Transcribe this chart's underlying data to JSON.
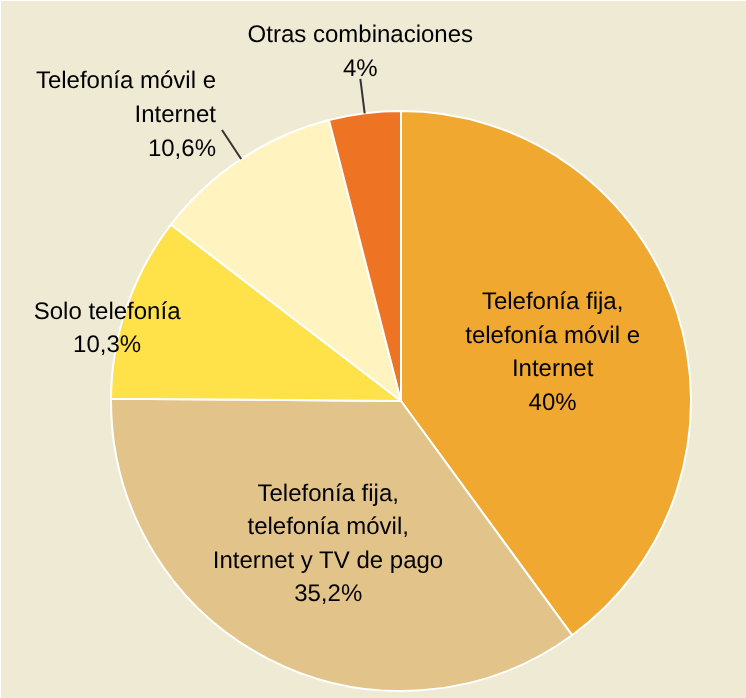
{
  "chart_data": {
    "type": "pie",
    "categories": [
      "Telefonía fija, telefonía móvil e Internet",
      "Telefonía fija, telefonía móvil, Internet y TV de pago",
      "Solo telefonía",
      "Telefonía móvil e Internet",
      "Otras combinaciones"
    ],
    "values": [
      40,
      35.2,
      10.3,
      10.6,
      4
    ],
    "value_labels": [
      "40%",
      "35,2%",
      "10,3%",
      "10,6%",
      "4%"
    ],
    "colors": [
      "#f0a830",
      "#e2c48a",
      "#ffe14a",
      "#fff4c0",
      "#ee7322"
    ]
  }
}
